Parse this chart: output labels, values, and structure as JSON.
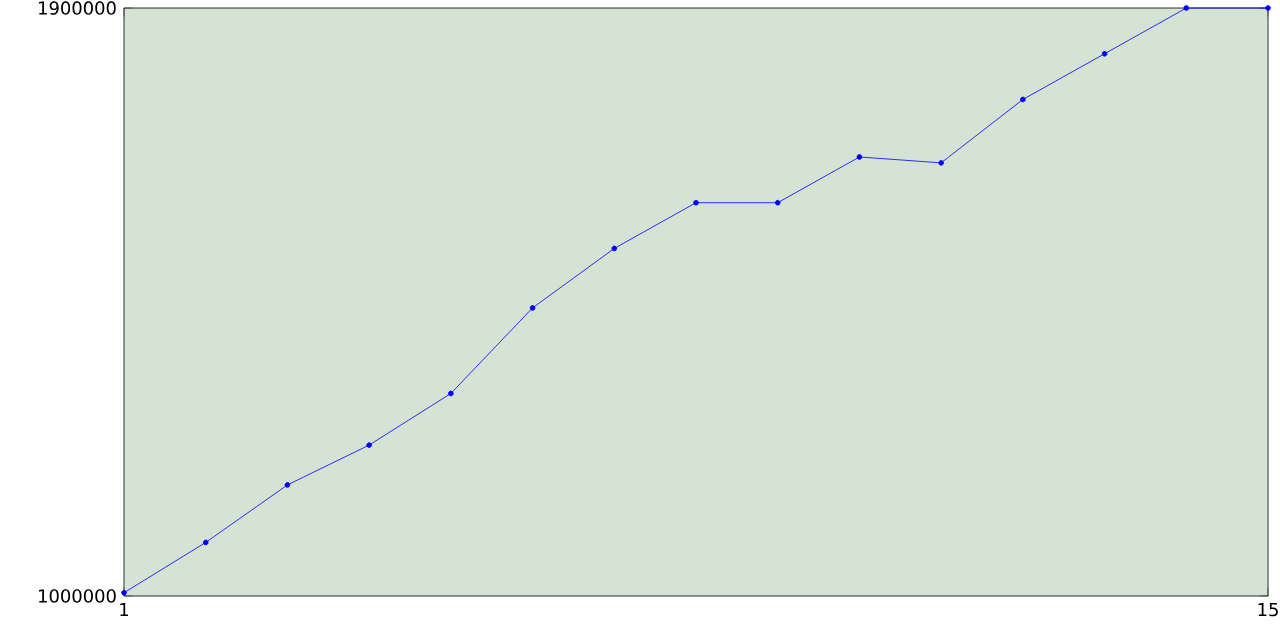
{
  "chart_data": {
    "type": "line",
    "x": [
      1,
      2,
      3,
      4,
      5,
      6,
      7,
      8,
      9,
      10,
      11,
      12,
      13,
      14,
      15
    ],
    "series": [
      {
        "color": "#0000ff",
        "values": [
          1005000,
          1082000,
          1170000,
          1231000,
          1310000,
          1441000,
          1532000,
          1602000,
          1602000,
          1672000,
          1663000,
          1760000,
          1830000,
          1900000,
          1900000
        ]
      }
    ],
    "xlim": [
      1,
      15
    ],
    "ylim": [
      1000000,
      1900000
    ],
    "xticks": [
      1,
      15
    ],
    "yticks": [
      1000000,
      1900000
    ],
    "marker": "circle",
    "line_style": "solid"
  }
}
